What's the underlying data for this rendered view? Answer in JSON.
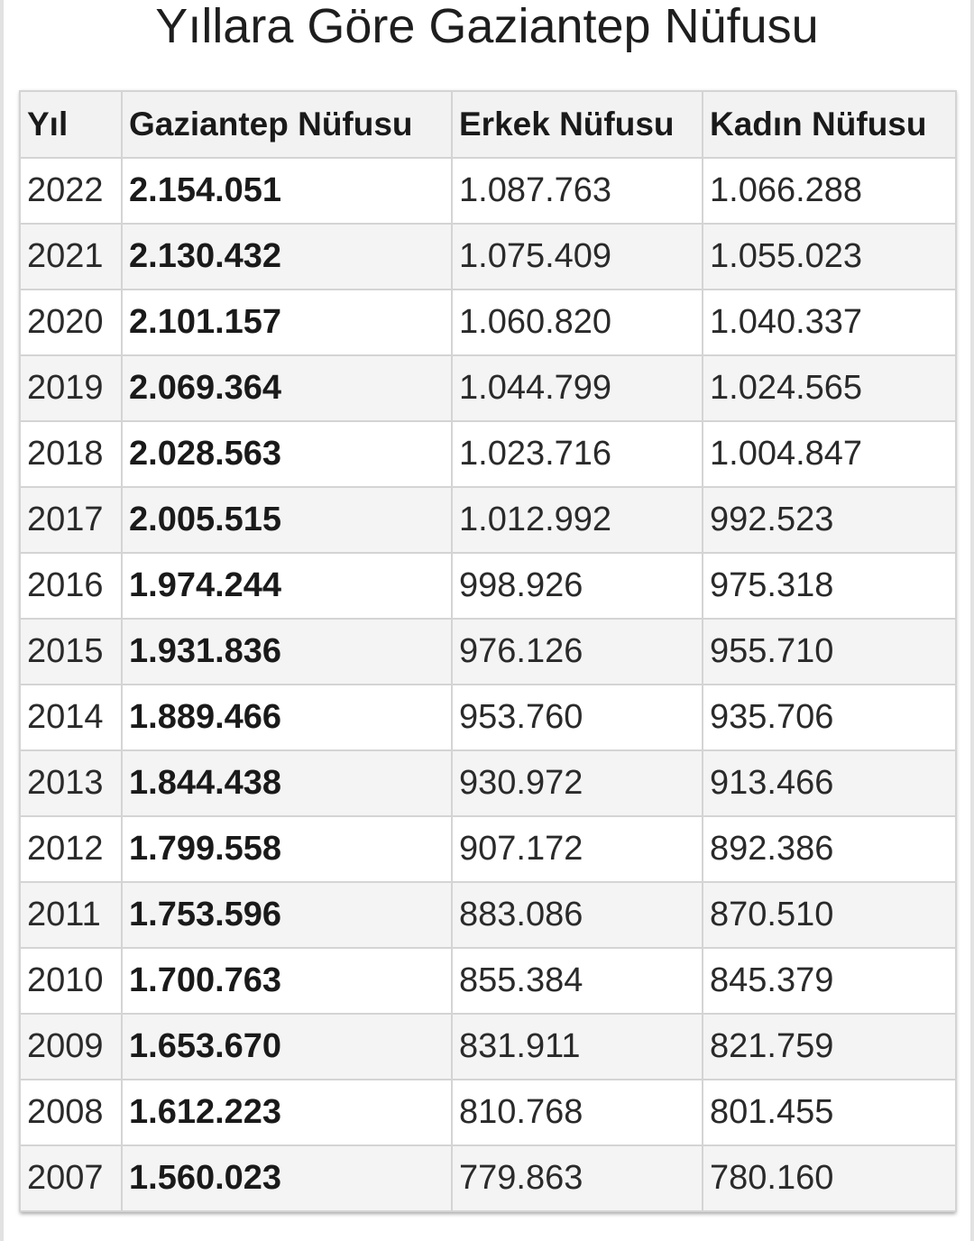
{
  "page": {
    "title": "Yıllara Göre Gaziantep Nüfusu"
  },
  "table": {
    "headers": [
      "Yıl",
      "Gaziantep Nüfusu",
      "Erkek Nüfusu",
      "Kadın Nüfusu"
    ],
    "rows": [
      [
        "2022",
        "2.154.051",
        "1.087.763",
        "1.066.288"
      ],
      [
        "2021",
        "2.130.432",
        "1.075.409",
        "1.055.023"
      ],
      [
        "2020",
        "2.101.157",
        "1.060.820",
        "1.040.337"
      ],
      [
        "2019",
        "2.069.364",
        "1.044.799",
        "1.024.565"
      ],
      [
        "2018",
        "2.028.563",
        "1.023.716",
        "1.004.847"
      ],
      [
        "2017",
        "2.005.515",
        "1.012.992",
        "992.523"
      ],
      [
        "2016",
        "1.974.244",
        "998.926",
        "975.318"
      ],
      [
        "2015",
        "1.931.836",
        "976.126",
        "955.710"
      ],
      [
        "2014",
        "1.889.466",
        "953.760",
        "935.706"
      ],
      [
        "2013",
        "1.844.438",
        "930.972",
        "913.466"
      ],
      [
        "2012",
        "1.799.558",
        "907.172",
        "892.386"
      ],
      [
        "2011",
        "1.753.596",
        "883.086",
        "870.510"
      ],
      [
        "2010",
        "1.700.763",
        "855.384",
        "845.379"
      ],
      [
        "2009",
        "1.653.670",
        "831.911",
        "821.759"
      ],
      [
        "2008",
        "1.612.223",
        "810.768",
        "801.455"
      ],
      [
        "2007",
        "1.560.023",
        "779.863",
        "780.160"
      ]
    ]
  }
}
